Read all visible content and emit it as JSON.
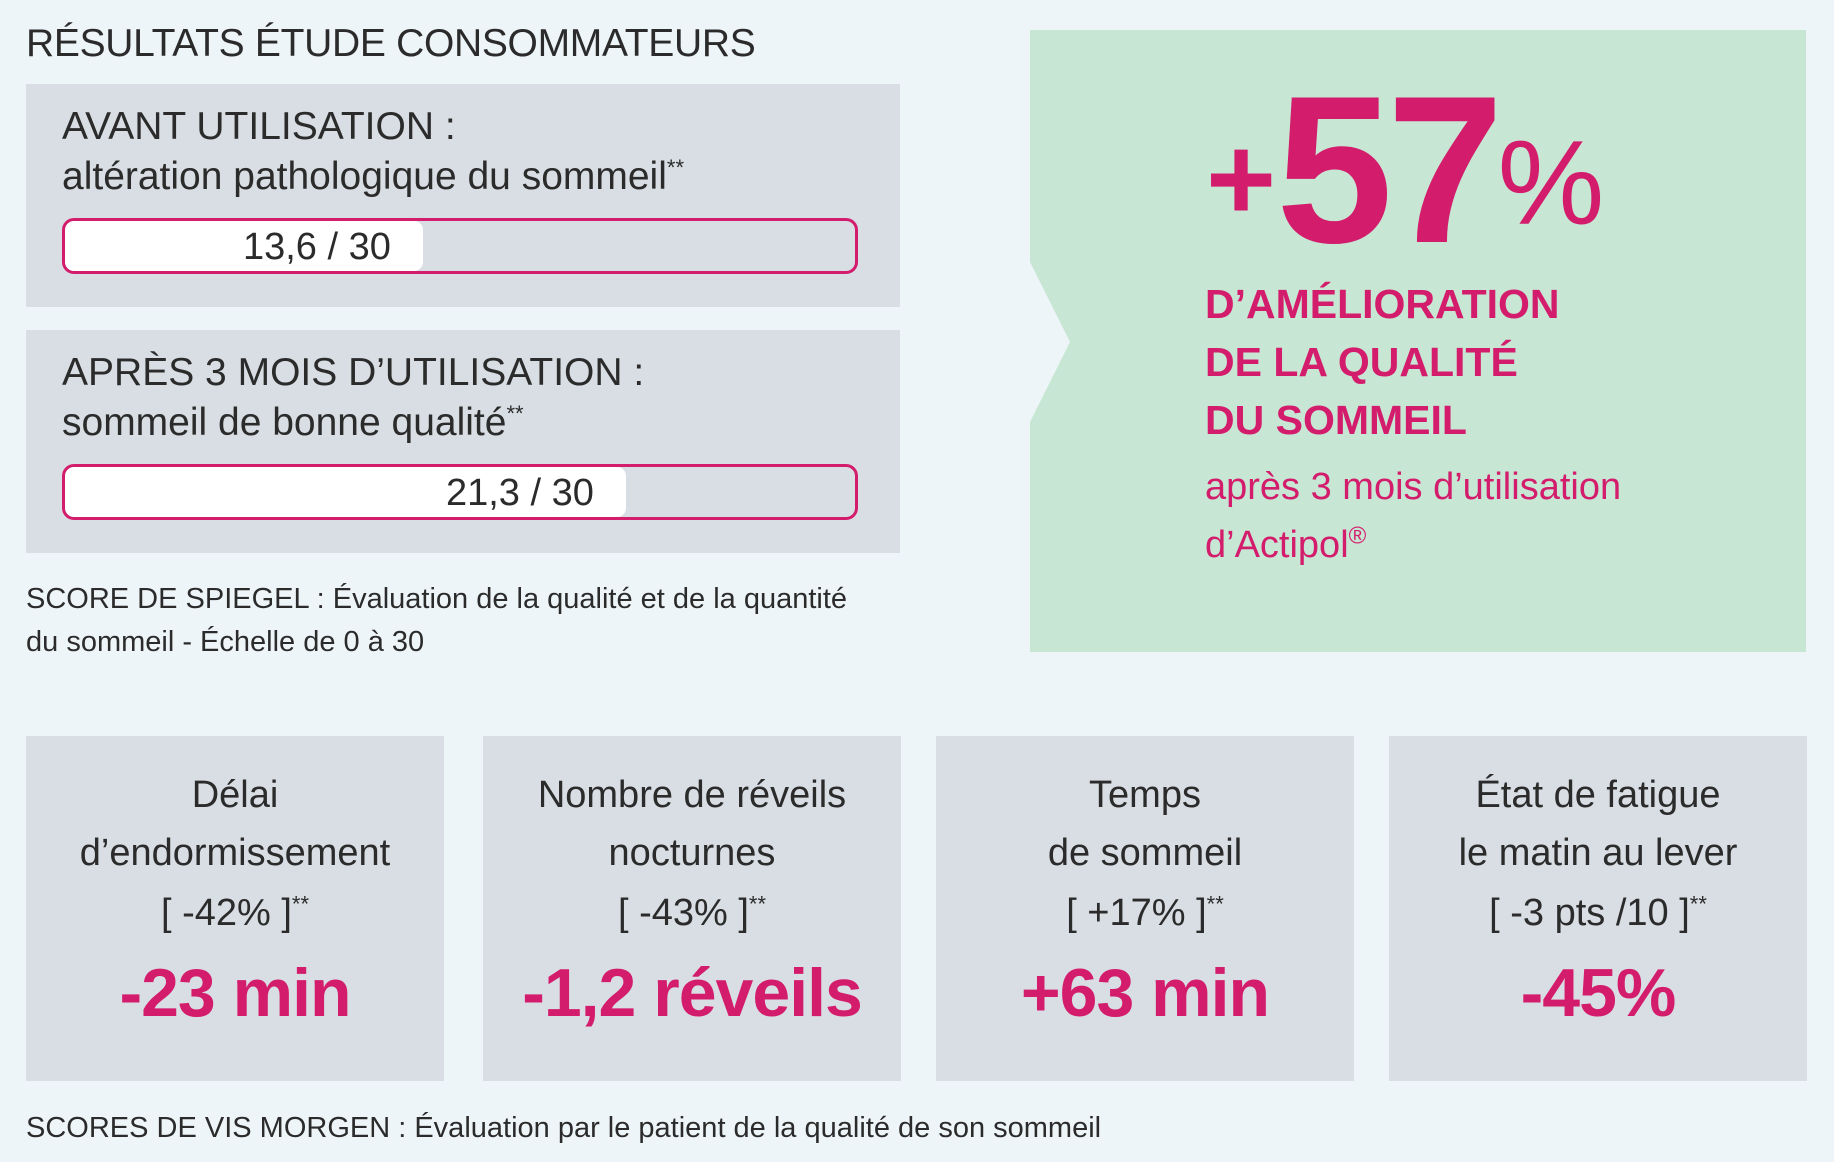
{
  "title": "RÉSULTATS ÉTUDE CONSOMMATEURS",
  "before": {
    "heading": "AVANT UTILISATION :",
    "desc": "altération pathologique du sommeil",
    "mark": "**",
    "score_label": "13,6 / 30",
    "score_fraction": 0.453
  },
  "after": {
    "heading": "APRÈS 3 MOIS D’UTILISATION :",
    "desc": "sommeil de bonne qualité",
    "mark": "**",
    "score_label": "21,3 / 30",
    "score_fraction": 0.71
  },
  "spiegel_note": {
    "line1": "SCORE DE SPIEGEL : Évaluation de la qualité et de la quantité",
    "line2": "du sommeil - Échelle de 0 à 30"
  },
  "highlight": {
    "plus": "+",
    "number": "57",
    "percent": "%",
    "line1": "D’AMÉLIORATION",
    "line2": "DE LA QUALITÉ",
    "line3": "DU SOMMEIL",
    "sub1": "après 3 mois d’utilisation",
    "sub2": "d’Actipol",
    "reg": "®"
  },
  "cards": [
    {
      "line1": "Délai",
      "line2": "d’endormissement",
      "pct": "[ -42% ]",
      "mark": "**",
      "value": "-23 min"
    },
    {
      "line1": "Nombre de réveils",
      "line2": "nocturnes",
      "pct": "[ -43% ]",
      "mark": "**",
      "value": "-1,2 réveils"
    },
    {
      "line1": "Temps",
      "line2": "de sommeil",
      "pct": "[ +17% ]",
      "mark": "**",
      "value": "+63 min"
    },
    {
      "line1": "État de fatigue",
      "line2": "le matin au lever",
      "pct": "[ -3 pts /10 ]",
      "mark": "**",
      "value": "-45%"
    }
  ],
  "footer": "SCORES DE VIS MORGEN : Évaluation par le patient de la qualité de son sommeil",
  "colors": {
    "accent": "#d41c6d",
    "green": "#c7e6d3",
    "panel": "#d8dee3",
    "background": "#eef5f9"
  }
}
